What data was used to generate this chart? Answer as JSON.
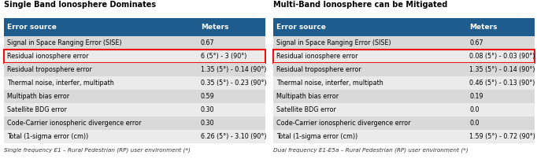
{
  "left_title": "Single Band Ionosphere Dominates",
  "right_title": "Multi-Band Ionosphere can be Mitigated",
  "header": [
    "Error source",
    "Meters"
  ],
  "header_bg": "#1e5c8e",
  "header_fg": "#ffffff",
  "left_rows": [
    [
      "Signal in Space Ranging Error (SISE)",
      "0.67"
    ],
    [
      "Residual ionosphere error",
      "6 (5°) - 3 (90°)"
    ],
    [
      "Residual troposphere error",
      "1.35 (5°) - 0.14 (90°)"
    ],
    [
      "Thermal noise, interfer, multipath",
      "0.35 (5°) - 0.23 (90°)"
    ],
    [
      "Multipath bias error",
      "0.59"
    ],
    [
      "Satellite BDG error",
      "0.30"
    ],
    [
      "Code-Carrier ionospheric divergence error",
      "0.30"
    ],
    [
      "Total (1-sigma error (cm))",
      "6.26 (5°) - 3.10 (90°)"
    ]
  ],
  "right_rows": [
    [
      "Signal in Space Ranging Error (SISE)",
      "0.67"
    ],
    [
      "Residual ionosphere error",
      "0.08 (5°) - 0.03 (90°)"
    ],
    [
      "Residual troposphere error",
      "1.35 (5°) - 0.14 (90°)"
    ],
    [
      "Thermal noise, interfer, multipath",
      "0.46 (5°) - 0.13 (90°)"
    ],
    [
      "Multipath bias error",
      "0.19"
    ],
    [
      "Satellite BDG error",
      "0.0"
    ],
    [
      "Code-Carrier ionospheric divergence error",
      "0.0"
    ],
    [
      "Total (1-sigma error (cm))",
      "1.59 (5°) - 0.72 (90°)"
    ]
  ],
  "row_colors": [
    "#d9d9d9",
    "#ebebeb"
  ],
  "highlight_row_idx": 1,
  "highlight_color": "#ee1111",
  "left_footnote": "Single frequency E1 – Rural Pedestrian (RP) user environment (*)",
  "right_footnote": "Dual frequency E1-E5a – Rural Pedestrian (RP) user environment (*)",
  "fig_w": 6.82,
  "fig_h": 2.02,
  "dpi": 100,
  "title_fontsize": 7.0,
  "header_fontsize": 6.5,
  "cell_fontsize": 5.8,
  "footnote_fontsize": 5.2,
  "col_split": 0.74
}
